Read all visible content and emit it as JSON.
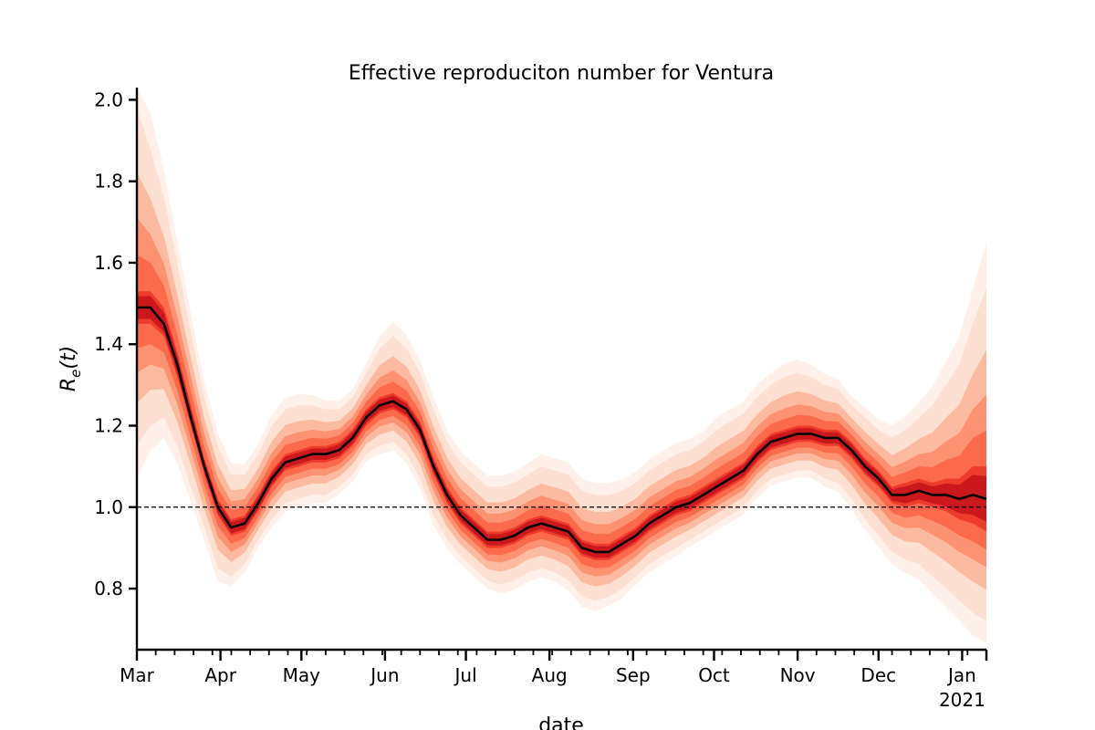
{
  "chart_data": {
    "type": "area",
    "title": "Effective reproduciton number for Ventura",
    "xlabel": "date",
    "ylabel": "R_e(t)",
    "ylabel_parts": {
      "base": "R",
      "sub": "e",
      "arg": "(t)"
    },
    "xlim": [
      "2020-03-01",
      "2021-01-10"
    ],
    "ylim": [
      0.65,
      2.03
    ],
    "y_ticks": [
      0.8,
      1.0,
      1.2,
      1.4,
      1.6,
      1.8,
      2.0
    ],
    "x_major_ticks": [
      {
        "date": "2020-03-01",
        "label": "Mar",
        "sublabel": ""
      },
      {
        "date": "2020-04-01",
        "label": "Apr",
        "sublabel": ""
      },
      {
        "date": "2020-05-01",
        "label": "May",
        "sublabel": ""
      },
      {
        "date": "2020-06-01",
        "label": "Jun",
        "sublabel": ""
      },
      {
        "date": "2020-07-01",
        "label": "Jul",
        "sublabel": ""
      },
      {
        "date": "2020-08-01",
        "label": "Aug",
        "sublabel": ""
      },
      {
        "date": "2020-09-01",
        "label": "Sep",
        "sublabel": ""
      },
      {
        "date": "2020-10-01",
        "label": "Oct",
        "sublabel": ""
      },
      {
        "date": "2020-11-01",
        "label": "Nov",
        "sublabel": ""
      },
      {
        "date": "2020-12-01",
        "label": "Dec",
        "sublabel": ""
      },
      {
        "date": "2021-01-01",
        "label": "Jan",
        "sublabel": "2021"
      }
    ],
    "x_minor_tick_interval": "weekly",
    "reference_line": {
      "y": 1.0,
      "style": "dashed"
    },
    "grid": false,
    "legend": "none",
    "colors": {
      "median_line": "#000000",
      "band_inner": "#cb181d",
      "band_outer": "#fee0d2",
      "axis": "#000000"
    },
    "series": [
      {
        "role": "median",
        "x": [
          "2020-03-01",
          "2020-03-06",
          "2020-03-11",
          "2020-03-16",
          "2020-03-21",
          "2020-03-26",
          "2020-03-31",
          "2020-04-05",
          "2020-04-10",
          "2020-04-15",
          "2020-04-20",
          "2020-04-25",
          "2020-04-30",
          "2020-05-05",
          "2020-05-10",
          "2020-05-15",
          "2020-05-20",
          "2020-05-25",
          "2020-05-30",
          "2020-06-04",
          "2020-06-09",
          "2020-06-14",
          "2020-06-19",
          "2020-06-24",
          "2020-06-29",
          "2020-07-04",
          "2020-07-09",
          "2020-07-14",
          "2020-07-19",
          "2020-07-24",
          "2020-07-29",
          "2020-08-03",
          "2020-08-08",
          "2020-08-13",
          "2020-08-18",
          "2020-08-23",
          "2020-08-28",
          "2020-09-02",
          "2020-09-07",
          "2020-09-12",
          "2020-09-17",
          "2020-09-22",
          "2020-09-27",
          "2020-10-02",
          "2020-10-07",
          "2020-10-12",
          "2020-10-17",
          "2020-10-22",
          "2020-10-27",
          "2020-11-01",
          "2020-11-06",
          "2020-11-11",
          "2020-11-16",
          "2020-11-21",
          "2020-11-26",
          "2020-12-01",
          "2020-12-06",
          "2020-12-11",
          "2020-12-16",
          "2020-12-21",
          "2020-12-26",
          "2020-12-31",
          "2021-01-05",
          "2021-01-10"
        ],
        "values": [
          1.49,
          1.49,
          1.45,
          1.35,
          1.22,
          1.1,
          1.0,
          0.95,
          0.96,
          1.01,
          1.07,
          1.11,
          1.12,
          1.13,
          1.13,
          1.14,
          1.17,
          1.22,
          1.25,
          1.26,
          1.24,
          1.19,
          1.1,
          1.03,
          0.98,
          0.95,
          0.92,
          0.92,
          0.93,
          0.95,
          0.96,
          0.95,
          0.94,
          0.9,
          0.89,
          0.89,
          0.91,
          0.93,
          0.96,
          0.98,
          1.0,
          1.01,
          1.03,
          1.05,
          1.07,
          1.09,
          1.13,
          1.16,
          1.17,
          1.18,
          1.18,
          1.17,
          1.17,
          1.14,
          1.1,
          1.07,
          1.03,
          1.03,
          1.04,
          1.03,
          1.03,
          1.02,
          1.03,
          1.02
        ]
      },
      {
        "role": "band_50",
        "lower": [
          1.45,
          1.45,
          1.42,
          1.32,
          1.2,
          1.08,
          0.98,
          0.93,
          0.94,
          0.99,
          1.05,
          1.09,
          1.1,
          1.11,
          1.11,
          1.12,
          1.15,
          1.2,
          1.23,
          1.24,
          1.22,
          1.17,
          1.08,
          1.01,
          0.96,
          0.93,
          0.9,
          0.9,
          0.91,
          0.93,
          0.94,
          0.93,
          0.92,
          0.88,
          0.87,
          0.87,
          0.89,
          0.91,
          0.94,
          0.96,
          0.98,
          0.99,
          1.01,
          1.03,
          1.05,
          1.07,
          1.11,
          1.14,
          1.15,
          1.16,
          1.16,
          1.15,
          1.15,
          1.12,
          1.08,
          1.05,
          1.01,
          1.0,
          1.01,
          1.0,
          0.99,
          0.97,
          0.96,
          0.94
        ],
        "upper": [
          1.53,
          1.53,
          1.49,
          1.38,
          1.25,
          1.12,
          1.02,
          0.97,
          0.98,
          1.03,
          1.09,
          1.13,
          1.14,
          1.15,
          1.15,
          1.16,
          1.19,
          1.24,
          1.27,
          1.28,
          1.26,
          1.21,
          1.12,
          1.05,
          1.0,
          0.97,
          0.94,
          0.94,
          0.95,
          0.97,
          0.98,
          0.97,
          0.96,
          0.92,
          0.91,
          0.91,
          0.93,
          0.95,
          0.98,
          1.0,
          1.02,
          1.03,
          1.05,
          1.07,
          1.09,
          1.11,
          1.15,
          1.18,
          1.19,
          1.2,
          1.2,
          1.19,
          1.19,
          1.16,
          1.12,
          1.09,
          1.05,
          1.06,
          1.07,
          1.06,
          1.07,
          1.07,
          1.1,
          1.1
        ]
      },
      {
        "role": "band_95",
        "lower": [
          1.15,
          1.2,
          1.22,
          1.15,
          1.05,
          0.95,
          0.85,
          0.83,
          0.86,
          0.92,
          0.97,
          1.01,
          1.02,
          1.03,
          1.03,
          1.05,
          1.08,
          1.13,
          1.15,
          1.16,
          1.13,
          1.07,
          0.98,
          0.92,
          0.88,
          0.85,
          0.82,
          0.81,
          0.82,
          0.84,
          0.85,
          0.84,
          0.82,
          0.78,
          0.77,
          0.78,
          0.8,
          0.83,
          0.86,
          0.88,
          0.9,
          0.92,
          0.94,
          0.96,
          0.98,
          1.0,
          1.04,
          1.07,
          1.08,
          1.09,
          1.09,
          1.07,
          1.06,
          1.02,
          0.97,
          0.93,
          0.89,
          0.87,
          0.86,
          0.83,
          0.8,
          0.77,
          0.74,
          0.72
        ],
        "upper": [
          1.98,
          1.88,
          1.76,
          1.6,
          1.43,
          1.27,
          1.15,
          1.08,
          1.08,
          1.13,
          1.2,
          1.24,
          1.25,
          1.25,
          1.24,
          1.24,
          1.27,
          1.33,
          1.39,
          1.42,
          1.39,
          1.33,
          1.24,
          1.16,
          1.11,
          1.08,
          1.05,
          1.05,
          1.06,
          1.08,
          1.1,
          1.09,
          1.08,
          1.04,
          1.03,
          1.03,
          1.04,
          1.06,
          1.09,
          1.11,
          1.13,
          1.14,
          1.16,
          1.19,
          1.21,
          1.23,
          1.27,
          1.3,
          1.32,
          1.33,
          1.32,
          1.3,
          1.29,
          1.25,
          1.22,
          1.19,
          1.17,
          1.19,
          1.22,
          1.25,
          1.3,
          1.35,
          1.45,
          1.54
        ]
      }
    ]
  }
}
